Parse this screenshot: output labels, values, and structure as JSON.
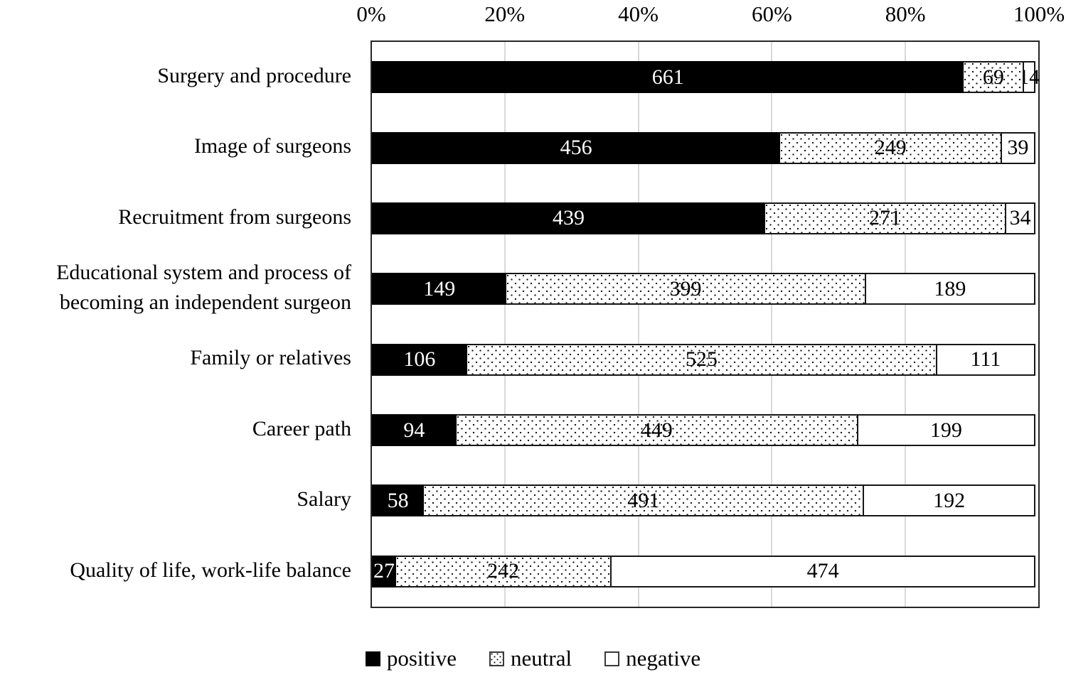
{
  "chart_data": {
    "type": "bar",
    "orientation": "horizontal",
    "stacked": "percent",
    "title": "",
    "xlabel": "",
    "ylabel": "",
    "categories": [
      "Surgery and procedure",
      "Image of surgeons",
      "Recruitment from surgeons",
      "Educational system and process of becoming an independent surgeon",
      "Family or relatives",
      "Career path",
      "Salary",
      "Quality of life, work-life balance"
    ],
    "series": [
      {
        "name": "positive",
        "style": "solid-black",
        "values": [
          661,
          456,
          439,
          149,
          106,
          94,
          58,
          27
        ]
      },
      {
        "name": "neutral",
        "style": "dotted",
        "values": [
          69,
          249,
          271,
          399,
          525,
          449,
          491,
          242
        ]
      },
      {
        "name": "negative",
        "style": "white",
        "values": [
          14,
          39,
          34,
          189,
          111,
          199,
          192,
          474
        ]
      }
    ],
    "x_axis": {
      "ticks": [
        "0%",
        "20%",
        "40%",
        "60%",
        "80%",
        "100%"
      ],
      "range_percent": [
        0,
        100
      ],
      "grid": true,
      "position": "top"
    },
    "legend": {
      "position": "bottom",
      "entries": [
        "positive",
        "neutral",
        "negative"
      ]
    },
    "colors": {
      "positive_fill": "#000000",
      "neutral_fill": "#ffffff",
      "neutral_dot": "#1a1a1a",
      "negative_fill": "#ffffff",
      "segment_border": "#161616",
      "plot_border": "#262626",
      "gridline": "#d9d9d9",
      "value_label_on_positive": "#ffffff",
      "value_label_on_light": "#000000"
    }
  }
}
